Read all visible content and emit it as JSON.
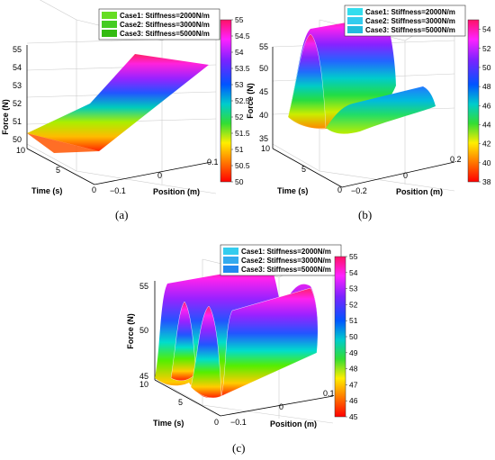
{
  "chart_data": [
    {
      "type": "surface",
      "caption": "(a)",
      "xlabel": "Position (m)",
      "ylabel": "Time (s)",
      "zlabel": "Force (N)",
      "x_ticks": [
        "−0.1",
        "0",
        "0.1"
      ],
      "y_ticks": [
        "0",
        "5",
        "10"
      ],
      "z_ticks": [
        "50",
        "51",
        "52",
        "53",
        "54",
        "55"
      ],
      "zlim": [
        50,
        55
      ],
      "colorbar_ticks": [
        "50",
        "50.5",
        "51",
        "51.5",
        "52",
        "52.5",
        "53",
        "53.5",
        "54",
        "54.5",
        "55"
      ],
      "colorbar_range": [
        50,
        55
      ],
      "series": [
        {
          "name": "Case1: Stiffness=2000N/m",
          "color": "#66dd22"
        },
        {
          "name": "Case2: Stiffness=3000N/m",
          "color": "#44cc22"
        },
        {
          "name": "Case3: Stiffness=5000N/m",
          "color": "#33bb11"
        }
      ]
    },
    {
      "type": "surface",
      "caption": "(b)",
      "xlabel": "Position (m)",
      "ylabel": "Time (s)",
      "zlabel": "Force (N)",
      "x_ticks": [
        "−0.2",
        "0",
        "0.2"
      ],
      "y_ticks": [
        "0",
        "5",
        "10"
      ],
      "z_ticks": [
        "35",
        "40",
        "45",
        "50",
        "55"
      ],
      "zlim": [
        35,
        55
      ],
      "colorbar_ticks": [
        "38",
        "40",
        "42",
        "44",
        "46",
        "48",
        "50",
        "52",
        "54"
      ],
      "colorbar_range": [
        38,
        55
      ],
      "series": [
        {
          "name": "Case1: Stiffness=2000N/m",
          "color": "#33ddee"
        },
        {
          "name": "Case2: Stiffness=3000N/m",
          "color": "#33ccee"
        },
        {
          "name": "Case3: Stiffness=5000N/m",
          "color": "#22bbdd"
        }
      ]
    },
    {
      "type": "surface",
      "caption": "(c)",
      "xlabel": "Position (m)",
      "ylabel": "Time (s)",
      "zlabel": "Force (N)",
      "x_ticks": [
        "−0.1",
        "0",
        "0.1"
      ],
      "y_ticks": [
        "0",
        "5",
        "10"
      ],
      "z_ticks": [
        "45",
        "50",
        "55"
      ],
      "zlim": [
        45,
        55
      ],
      "colorbar_ticks": [
        "45",
        "46",
        "47",
        "48",
        "49",
        "50",
        "51",
        "52",
        "53",
        "54",
        "55"
      ],
      "colorbar_range": [
        45,
        55
      ],
      "series": [
        {
          "name": "Case1: Stiffness=2000N/m",
          "color": "#33ccee"
        },
        {
          "name": "Case2: Stiffness=3000N/m",
          "color": "#33aaee"
        },
        {
          "name": "Case3: Stiffness=5000N/m",
          "color": "#2288ee"
        }
      ]
    }
  ]
}
